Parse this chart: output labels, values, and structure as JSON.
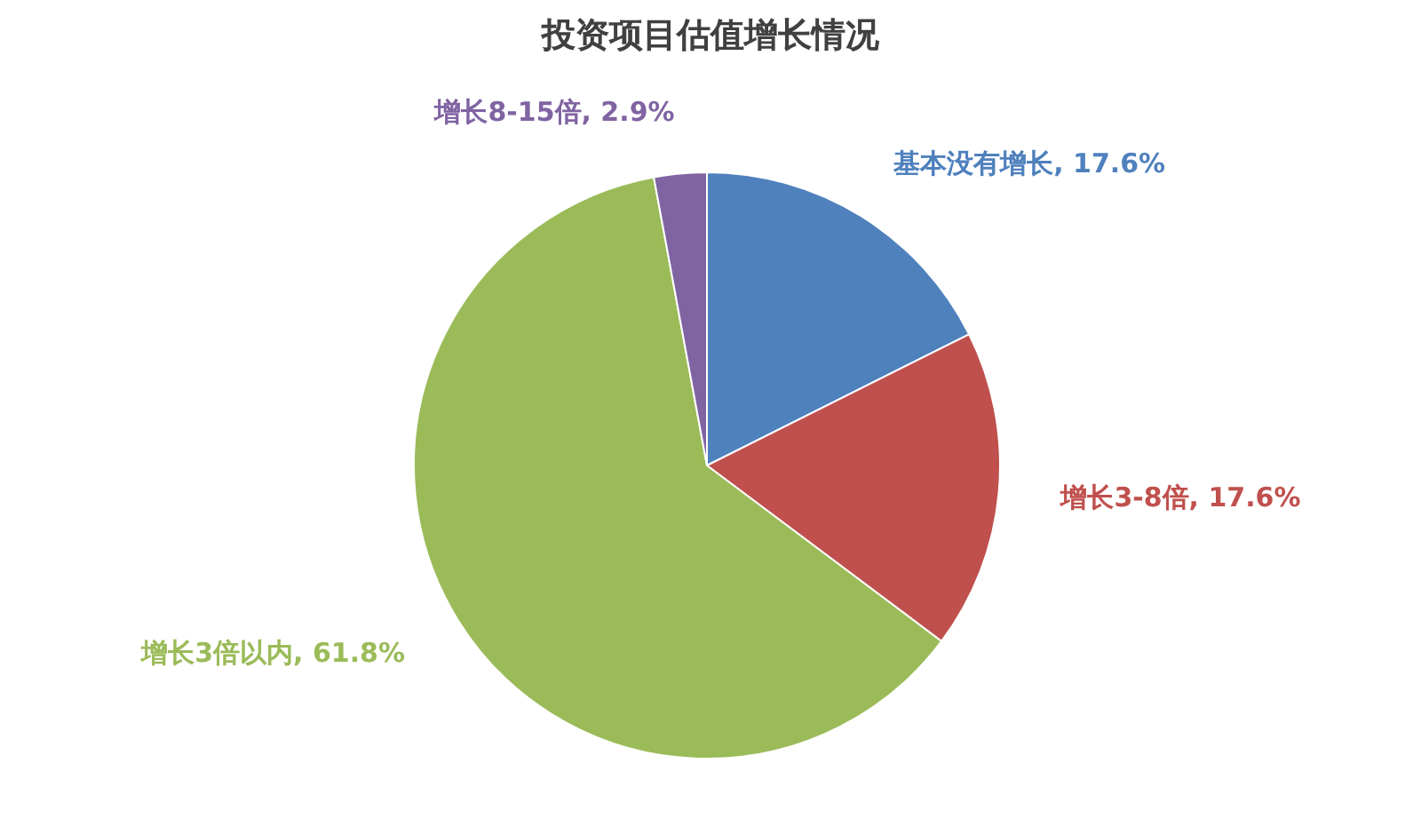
{
  "chart_data": {
    "type": "pie",
    "title": "投资项目估值增长情况",
    "categories": [
      "基本没有增长",
      "增长3-8倍",
      "增长3倍以内",
      "增长8-15倍"
    ],
    "values": [
      17.6,
      17.6,
      61.8,
      2.9
    ],
    "value_labels": [
      "17.6%",
      "17.6%",
      "61.8%",
      "2.9%"
    ],
    "colors": [
      "#4f81bd",
      "#c0504d",
      "#9bbb59",
      "#8064a2"
    ]
  }
}
